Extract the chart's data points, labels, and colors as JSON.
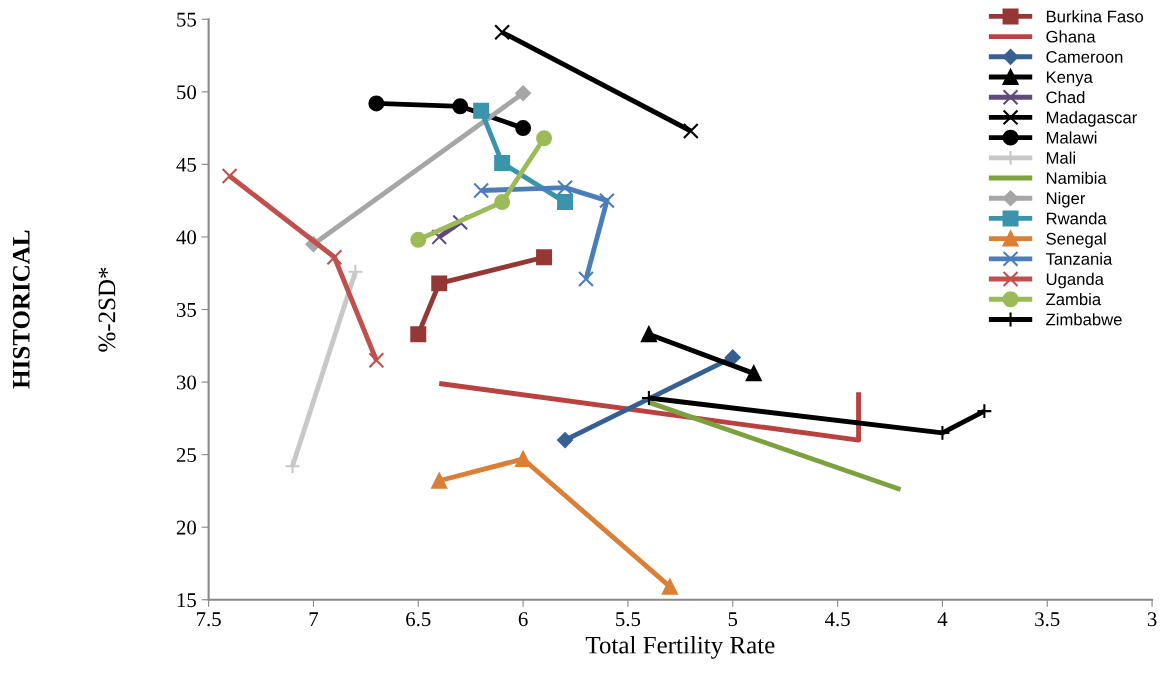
{
  "chart_data": {
    "type": "line",
    "xlabel": "Total Fertility Rate",
    "ylabel": "%-2SD*",
    "annotations": [
      "HISTORICAL"
    ],
    "xlim": [
      7.5,
      3
    ],
    "xticks": [
      7.5,
      7,
      6.5,
      6,
      5.5,
      5,
      4.5,
      4,
      3.5,
      3
    ],
    "ylim": [
      15,
      55
    ],
    "yticks": [
      15,
      20,
      25,
      30,
      35,
      40,
      45,
      50,
      55
    ],
    "grid": false,
    "legend": "top right",
    "series": [
      {
        "name": "Burkina Faso",
        "color": "#953735",
        "marker": "square",
        "x": [
          6.5,
          6.4,
          5.9
        ],
        "values": [
          33.3,
          36.8,
          38.6
        ]
      },
      {
        "name": "Ghana",
        "color": "#b9413f",
        "marker": "none",
        "x": [
          6.4,
          4.4,
          4.4
        ],
        "values": [
          29.9,
          26.0,
          29.3
        ]
      },
      {
        "name": "Cameroon",
        "color": "#376092",
        "marker": "diamond",
        "x": [
          5.8,
          5.0
        ],
        "values": [
          26.0,
          31.7
        ]
      },
      {
        "name": "Kenya",
        "color": "#000000",
        "marker": "triangle",
        "x": [
          5.4,
          4.9
        ],
        "values": [
          33.3,
          30.6
        ]
      },
      {
        "name": "Chad",
        "color": "#604a7b",
        "marker": "cross",
        "x": [
          6.4,
          6.3
        ],
        "values": [
          40.0,
          41.0
        ]
      },
      {
        "name": "Madagascar",
        "color": "#000000",
        "marker": "cross",
        "x": [
          6.1,
          5.2
        ],
        "values": [
          54.1,
          47.3
        ]
      },
      {
        "name": "Malawi",
        "color": "#000000",
        "marker": "circle",
        "x": [
          6.7,
          6.3,
          6.0
        ],
        "values": [
          49.2,
          49.0,
          47.5
        ]
      },
      {
        "name": "Mali",
        "color": "#c8c8c8",
        "marker": "plus",
        "x": [
          7.1,
          6.8
        ],
        "values": [
          24.2,
          37.6
        ]
      },
      {
        "name": "Namibia",
        "color": "#7ba23f",
        "marker": "none",
        "x": [
          5.4,
          4.2
        ],
        "values": [
          28.6,
          22.6
        ]
      },
      {
        "name": "Niger",
        "color": "#a6a6a6",
        "marker": "diamond",
        "x": [
          7.0,
          6.0
        ],
        "values": [
          39.5,
          49.9
        ]
      },
      {
        "name": "Rwanda",
        "color": "#3c93ac",
        "marker": "square",
        "x": [
          6.2,
          6.1,
          5.8
        ],
        "values": [
          48.7,
          45.1,
          42.4
        ]
      },
      {
        "name": "Senegal",
        "color": "#dc7f36",
        "marker": "triangle",
        "x": [
          6.4,
          6.0,
          5.3
        ],
        "values": [
          23.2,
          24.7,
          15.9
        ]
      },
      {
        "name": "Tanzania",
        "color": "#4a7ebb",
        "marker": "cross",
        "x": [
          6.2,
          5.8,
          5.6,
          5.7
        ],
        "values": [
          43.2,
          43.4,
          42.5,
          37.1
        ]
      },
      {
        "name": "Uganda",
        "color": "#c0504d",
        "marker": "cross",
        "x": [
          7.4,
          6.9,
          6.7
        ],
        "values": [
          44.2,
          38.6,
          31.5
        ]
      },
      {
        "name": "Zambia",
        "color": "#9bbb59",
        "marker": "circle",
        "x": [
          6.5,
          6.1,
          5.9
        ],
        "values": [
          39.8,
          42.4,
          46.8
        ]
      },
      {
        "name": "Zimbabwe",
        "color": "#000000",
        "marker": "plus",
        "x": [
          5.4,
          4.0,
          3.8
        ],
        "values": [
          28.9,
          26.5,
          28.0
        ]
      }
    ]
  }
}
